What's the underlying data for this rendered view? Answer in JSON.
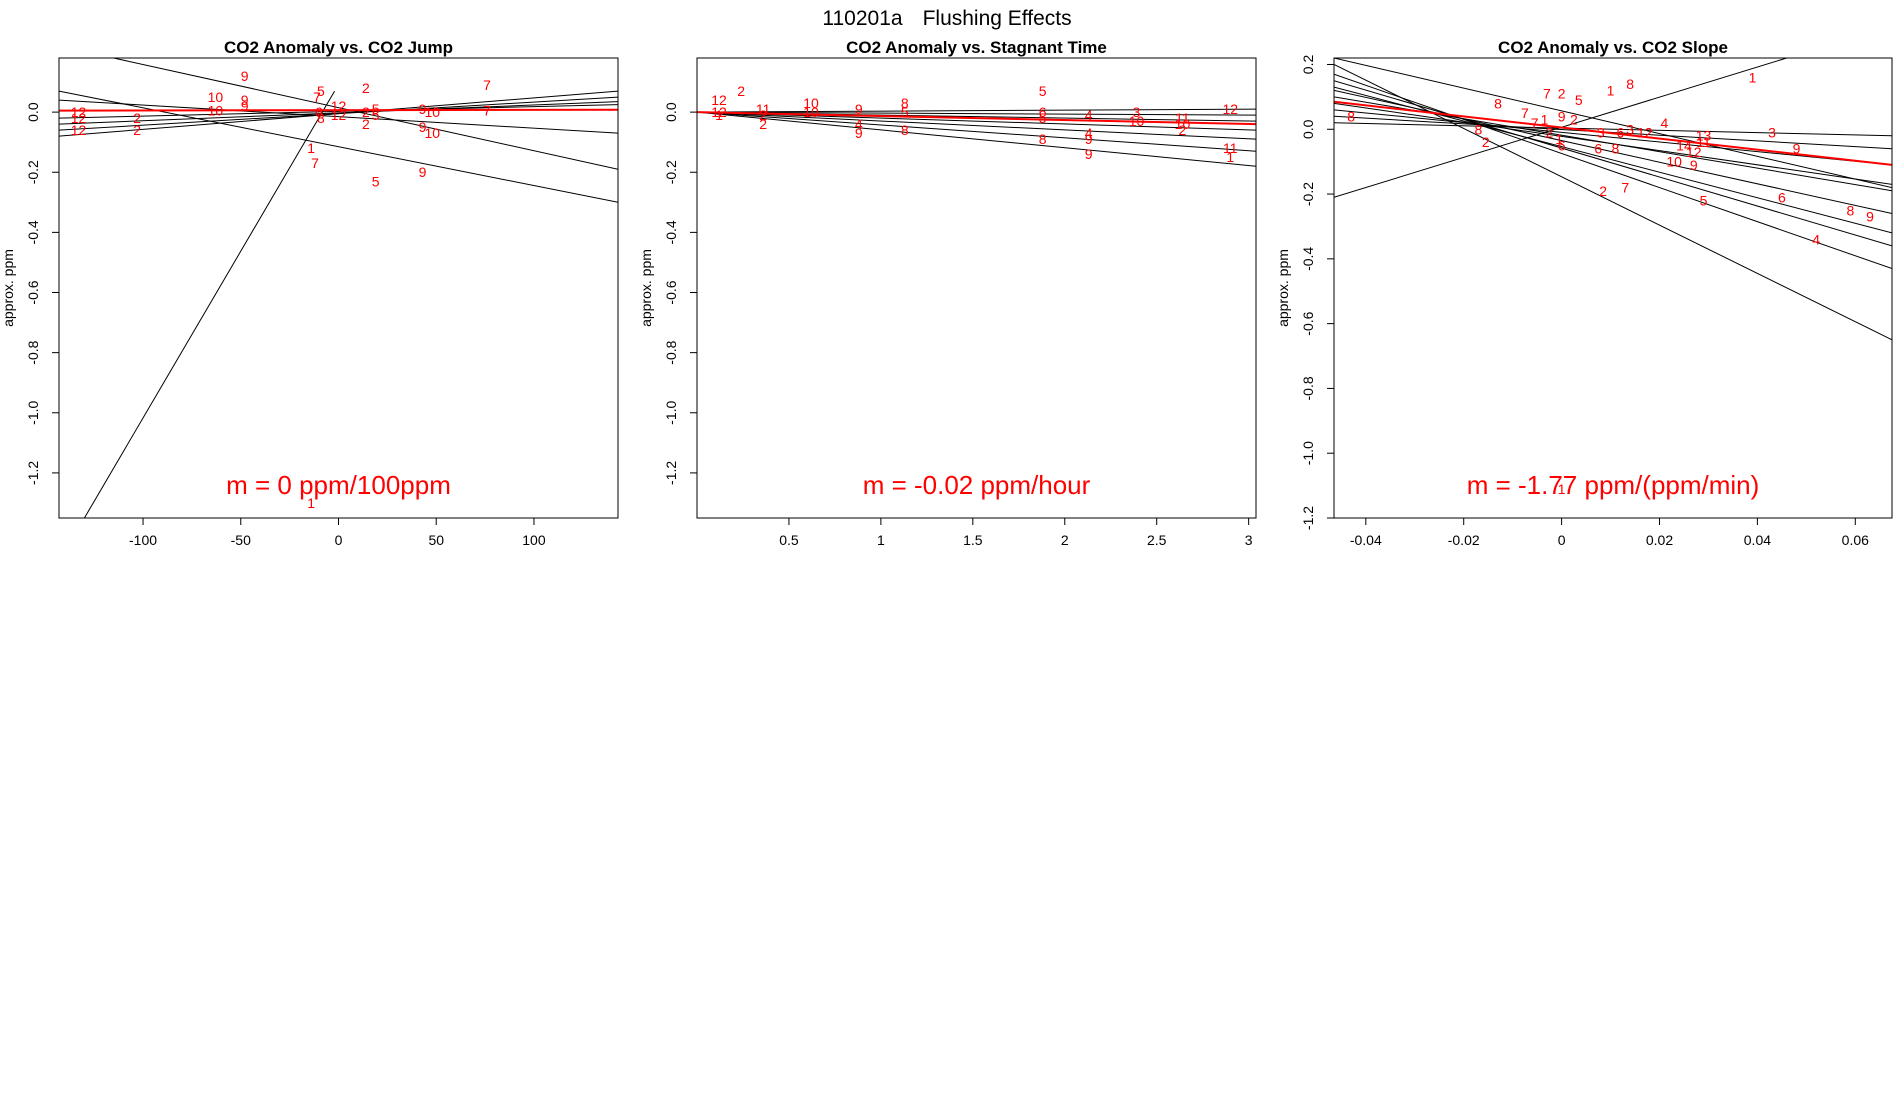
{
  "figure": {
    "id_label": "110201a",
    "title": "Flushing Effects"
  },
  "colors": {
    "axis": "#000000",
    "fit_line": "#000000",
    "mean_line": "#ff0000",
    "point_label": "#ff0000"
  },
  "chart_data": [
    {
      "type": "scatter",
      "title": "CO2 Anomaly vs. CO2 Jump",
      "xlabel": "",
      "ylabel": "approx. ppm",
      "xlim": [
        -143,
        143
      ],
      "ylim": [
        -1.35,
        0.18
      ],
      "xticks": [
        -100,
        -50,
        0,
        50,
        100
      ],
      "yticks": [
        -1.2,
        -1.0,
        -0.8,
        -0.6,
        -0.4,
        -0.2,
        0.0
      ],
      "slope_text": "m = 0 ppm/100ppm",
      "mean_line": [
        [
          -143,
          0.005
        ],
        [
          143,
          0.008
        ]
      ],
      "fit_lines": [
        [
          [
            -143,
            0.07
          ],
          [
            143,
            -0.3
          ]
        ],
        [
          [
            -143,
            -0.08
          ],
          [
            143,
            0.07
          ]
        ],
        [
          [
            -143,
            -0.06
          ],
          [
            143,
            0.05
          ]
        ],
        [
          [
            -143,
            -0.04
          ],
          [
            143,
            0.035
          ]
        ],
        [
          [
            -143,
            0.04
          ],
          [
            143,
            -0.07
          ]
        ],
        [
          [
            -143,
            0.22
          ],
          [
            143,
            -0.19
          ]
        ],
        [
          [
            -143,
            -0.02
          ],
          [
            143,
            0.025
          ]
        ],
        [
          [
            -130,
            -1.35
          ],
          [
            -2,
            0.07
          ]
        ]
      ],
      "points": [
        {
          "x": -48,
          "y": 0.12,
          "label": "9"
        },
        {
          "x": -63,
          "y": 0.05,
          "label": "10"
        },
        {
          "x": -63,
          "y": 0.005,
          "label": "10"
        },
        {
          "x": -48,
          "y": 0.04,
          "label": "9"
        },
        {
          "x": -48,
          "y": 0.02,
          "label": "9"
        },
        {
          "x": -133,
          "y": 0.0,
          "label": "12"
        },
        {
          "x": -133,
          "y": -0.02,
          "label": "12"
        },
        {
          "x": -133,
          "y": -0.06,
          "label": "12"
        },
        {
          "x": -103,
          "y": -0.02,
          "label": "2"
        },
        {
          "x": -103,
          "y": -0.06,
          "label": "2"
        },
        {
          "x": -9,
          "y": 0.07,
          "label": "5"
        },
        {
          "x": -11,
          "y": 0.05,
          "label": "7"
        },
        {
          "x": -10,
          "y": 0.0,
          "label": "6"
        },
        {
          "x": -9,
          "y": -0.02,
          "label": "8"
        },
        {
          "x": 0,
          "y": 0.02,
          "label": "12"
        },
        {
          "x": 0,
          "y": -0.01,
          "label": "12"
        },
        {
          "x": 14,
          "y": 0.08,
          "label": "2"
        },
        {
          "x": 14,
          "y": 0.0,
          "label": "2"
        },
        {
          "x": 19,
          "y": 0.01,
          "label": "5"
        },
        {
          "x": 19,
          "y": -0.01,
          "label": "5"
        },
        {
          "x": 14,
          "y": -0.04,
          "label": "2"
        },
        {
          "x": 43,
          "y": 0.01,
          "label": "9"
        },
        {
          "x": 43,
          "y": -0.05,
          "label": "9"
        },
        {
          "x": 48,
          "y": 0.0,
          "label": "10"
        },
        {
          "x": 48,
          "y": -0.07,
          "label": "10"
        },
        {
          "x": 76,
          "y": 0.09,
          "label": "7"
        },
        {
          "x": 76,
          "y": 0.005,
          "label": "7"
        },
        {
          "x": -14,
          "y": -0.12,
          "label": "1"
        },
        {
          "x": -12,
          "y": -0.17,
          "label": "7"
        },
        {
          "x": 19,
          "y": -0.23,
          "label": "5"
        },
        {
          "x": 43,
          "y": -0.2,
          "label": "9"
        },
        {
          "x": -14,
          "y": -1.3,
          "label": "1"
        }
      ]
    },
    {
      "type": "scatter",
      "title": "CO2 Anomaly vs. Stagnant Time",
      "xlabel": "",
      "ylabel": "approx. ppm",
      "xlim": [
        0.0,
        3.04
      ],
      "ylim": [
        -1.35,
        0.18
      ],
      "xticks": [
        0.5,
        1.0,
        1.5,
        2.0,
        2.5,
        3.0
      ],
      "yticks": [
        -1.2,
        -1.0,
        -0.8,
        -0.6,
        -0.4,
        -0.2,
        0.0
      ],
      "slope_text": "m = -0.02 ppm/hour",
      "mean_line": [
        [
          0.0,
          0.0
        ],
        [
          3.04,
          -0.04
        ]
      ],
      "fit_lines": [
        [
          [
            0.0,
            0.0
          ],
          [
            3.04,
            0.01
          ]
        ],
        [
          [
            0.0,
            0.0
          ],
          [
            3.04,
            -0.01
          ]
        ],
        [
          [
            0.0,
            0.0
          ],
          [
            3.04,
            -0.06
          ]
        ],
        [
          [
            0.0,
            0.0
          ],
          [
            3.04,
            -0.09
          ]
        ],
        [
          [
            0.0,
            0.0
          ],
          [
            3.04,
            -0.13
          ]
        ],
        [
          [
            0.0,
            0.0
          ],
          [
            3.04,
            -0.18
          ]
        ],
        [
          [
            0.0,
            0.0
          ],
          [
            3.04,
            -0.03
          ]
        ]
      ],
      "points": [
        {
          "x": 0.12,
          "y": 0.04,
          "label": "12"
        },
        {
          "x": 0.24,
          "y": 0.07,
          "label": "2"
        },
        {
          "x": 0.12,
          "y": 0.0,
          "label": "12"
        },
        {
          "x": 0.12,
          "y": -0.01,
          "label": "1"
        },
        {
          "x": 0.36,
          "y": 0.01,
          "label": "11"
        },
        {
          "x": 0.36,
          "y": -0.01,
          "label": "2"
        },
        {
          "x": 0.36,
          "y": -0.04,
          "label": "2"
        },
        {
          "x": 0.62,
          "y": 0.03,
          "label": "10"
        },
        {
          "x": 0.62,
          "y": 0.0,
          "label": "10"
        },
        {
          "x": 0.88,
          "y": 0.01,
          "label": "9"
        },
        {
          "x": 0.88,
          "y": -0.04,
          "label": "4"
        },
        {
          "x": 0.88,
          "y": -0.07,
          "label": "9"
        },
        {
          "x": 1.13,
          "y": 0.03,
          "label": "8"
        },
        {
          "x": 1.13,
          "y": 0.0,
          "label": "5"
        },
        {
          "x": 1.13,
          "y": -0.06,
          "label": "8"
        },
        {
          "x": 1.88,
          "y": 0.07,
          "label": "5"
        },
        {
          "x": 1.88,
          "y": 0.0,
          "label": "6"
        },
        {
          "x": 1.88,
          "y": -0.02,
          "label": "5"
        },
        {
          "x": 1.88,
          "y": -0.09,
          "label": "8"
        },
        {
          "x": 2.13,
          "y": -0.01,
          "label": "4"
        },
        {
          "x": 2.13,
          "y": -0.07,
          "label": "4"
        },
        {
          "x": 2.13,
          "y": -0.09,
          "label": "9"
        },
        {
          "x": 2.13,
          "y": -0.14,
          "label": "9"
        },
        {
          "x": 2.39,
          "y": 0.0,
          "label": "3"
        },
        {
          "x": 2.39,
          "y": -0.03,
          "label": "10"
        },
        {
          "x": 2.64,
          "y": -0.02,
          "label": "11"
        },
        {
          "x": 2.64,
          "y": -0.04,
          "label": "10"
        },
        {
          "x": 2.64,
          "y": -0.06,
          "label": "2"
        },
        {
          "x": 2.9,
          "y": 0.01,
          "label": "12"
        },
        {
          "x": 2.9,
          "y": -0.12,
          "label": "11"
        },
        {
          "x": 2.9,
          "y": -0.15,
          "label": "1"
        }
      ]
    },
    {
      "type": "scatter",
      "title": "CO2 Anomaly vs. CO2 Slope",
      "xlabel": "",
      "ylabel": "approx. ppm",
      "xlim": [
        -0.0465,
        0.0675
      ],
      "ylim": [
        -1.2,
        0.22
      ],
      "xticks": [
        -0.04,
        -0.02,
        0.0,
        0.02,
        0.04,
        0.06
      ],
      "yticks": [
        -1.2,
        -1.0,
        -0.8,
        -0.6,
        -0.4,
        -0.2,
        0.0,
        0.2
      ],
      "slope_text": "m = -1.77 ppm/(ppm/min)",
      "mean_line": [
        [
          -0.0465,
          0.085
        ],
        [
          0.0675,
          -0.11
        ]
      ],
      "fit_lines": [
        [
          [
            -0.0465,
            -0.21
          ],
          [
            0.0675,
            0.32
          ]
        ],
        [
          [
            -0.0465,
            0.2
          ],
          [
            0.0675,
            -0.65
          ]
        ],
        [
          [
            -0.0465,
            0.17
          ],
          [
            0.0675,
            -0.43
          ]
        ],
        [
          [
            -0.0465,
            0.15
          ],
          [
            0.0675,
            -0.36
          ]
        ],
        [
          [
            -0.0465,
            0.13
          ],
          [
            0.0675,
            -0.32
          ]
        ],
        [
          [
            -0.0465,
            0.12
          ],
          [
            0.0675,
            -0.26
          ]
        ],
        [
          [
            -0.0465,
            0.1
          ],
          [
            0.0675,
            -0.19
          ]
        ],
        [
          [
            -0.0465,
            0.08
          ],
          [
            0.0675,
            -0.17
          ]
        ],
        [
          [
            -0.0465,
            0.06
          ],
          [
            0.0675,
            -0.11
          ]
        ],
        [
          [
            -0.0465,
            0.04
          ],
          [
            0.0675,
            -0.06
          ]
        ],
        [
          [
            -0.0465,
            0.02
          ],
          [
            0.0675,
            -0.02
          ]
        ],
        [
          [
            -0.0465,
            0.22
          ],
          [
            0.0675,
            -0.18
          ]
        ]
      ],
      "points": [
        {
          "x": 0.039,
          "y": 0.16,
          "label": "1"
        },
        {
          "x": 0.014,
          "y": 0.14,
          "label": "8"
        },
        {
          "x": 0.01,
          "y": 0.12,
          "label": "1"
        },
        {
          "x": -0.003,
          "y": 0.11,
          "label": "7"
        },
        {
          "x": 0.0,
          "y": 0.11,
          "label": "2"
        },
        {
          "x": 0.0035,
          "y": 0.09,
          "label": "5"
        },
        {
          "x": -0.013,
          "y": 0.08,
          "label": "8"
        },
        {
          "x": -0.043,
          "y": 0.04,
          "label": "8"
        },
        {
          "x": -0.0075,
          "y": 0.05,
          "label": "7"
        },
        {
          "x": -0.0035,
          "y": 0.03,
          "label": "1"
        },
        {
          "x": 0.0,
          "y": 0.04,
          "label": "9"
        },
        {
          "x": 0.0025,
          "y": 0.03,
          "label": "2"
        },
        {
          "x": 0.021,
          "y": 0.02,
          "label": "4"
        },
        {
          "x": 0.014,
          "y": 0.0,
          "label": "3"
        },
        {
          "x": 0.017,
          "y": -0.01,
          "label": "12"
        },
        {
          "x": 0.012,
          "y": -0.01,
          "label": "6"
        },
        {
          "x": 0.008,
          "y": -0.01,
          "label": "3"
        },
        {
          "x": -0.017,
          "y": 0.0,
          "label": "8"
        },
        {
          "x": -0.0155,
          "y": -0.04,
          "label": "2"
        },
        {
          "x": -0.0055,
          "y": 0.02,
          "label": "7"
        },
        {
          "x": -0.0025,
          "y": -0.01,
          "label": "2"
        },
        {
          "x": -0.0005,
          "y": -0.03,
          "label": "1"
        },
        {
          "x": 0.0,
          "y": -0.05,
          "label": "6"
        },
        {
          "x": 0.0075,
          "y": -0.06,
          "label": "6"
        },
        {
          "x": 0.011,
          "y": -0.06,
          "label": "8"
        },
        {
          "x": 0.029,
          "y": -0.02,
          "label": "13"
        },
        {
          "x": 0.029,
          "y": -0.04,
          "label": "11"
        },
        {
          "x": 0.025,
          "y": -0.05,
          "label": "14"
        },
        {
          "x": 0.027,
          "y": -0.07,
          "label": "12"
        },
        {
          "x": 0.043,
          "y": -0.01,
          "label": "3"
        },
        {
          "x": 0.048,
          "y": -0.06,
          "label": "9"
        },
        {
          "x": 0.023,
          "y": -0.1,
          "label": "10"
        },
        {
          "x": 0.027,
          "y": -0.11,
          "label": "9"
        },
        {
          "x": 0.0085,
          "y": -0.19,
          "label": "2"
        },
        {
          "x": 0.013,
          "y": -0.18,
          "label": "7"
        },
        {
          "x": 0.029,
          "y": -0.22,
          "label": "5"
        },
        {
          "x": 0.045,
          "y": -0.21,
          "label": "6"
        },
        {
          "x": 0.059,
          "y": -0.25,
          "label": "8"
        },
        {
          "x": 0.063,
          "y": -0.27,
          "label": "9"
        },
        {
          "x": 0.052,
          "y": -0.34,
          "label": "4"
        },
        {
          "x": 0.0,
          "y": -1.11,
          "label": "1"
        }
      ]
    }
  ]
}
